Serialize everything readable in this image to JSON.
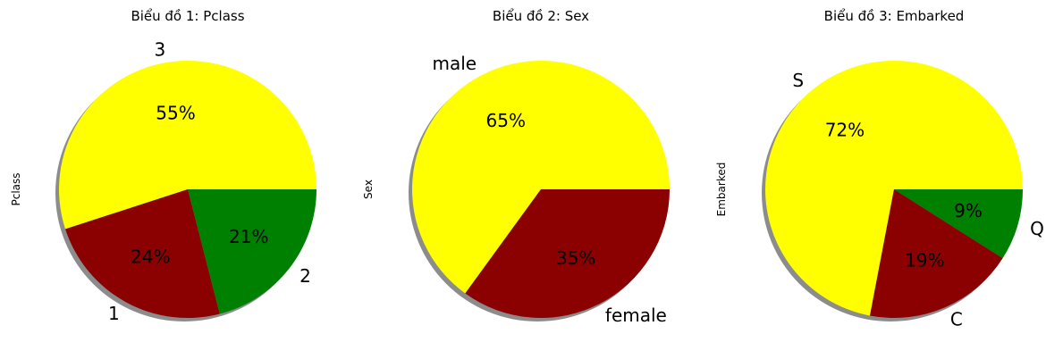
{
  "chart_data": [
    {
      "type": "pie",
      "title": "Biểu đồ 1: Pclass",
      "ylabel": "Pclass",
      "categories": [
        "3",
        "1",
        "2"
      ],
      "values": [
        55,
        24,
        21
      ],
      "pct_labels": [
        "55%",
        "24%",
        "21%"
      ],
      "colors": [
        "#ffff00",
        "#8b0000",
        "#008000"
      ],
      "shadow": true
    },
    {
      "type": "pie",
      "title": "Biểu đồ 2: Sex",
      "ylabel": "Sex",
      "categories": [
        "male",
        "female"
      ],
      "values": [
        65,
        35
      ],
      "pct_labels": [
        "65%",
        "35%"
      ],
      "colors": [
        "#ffff00",
        "#8b0000"
      ],
      "shadow": true
    },
    {
      "type": "pie",
      "title": "Biểu đồ 3: Embarked",
      "ylabel": "Embarked",
      "categories": [
        "S",
        "C",
        "Q"
      ],
      "values": [
        72,
        19,
        9
      ],
      "pct_labels": [
        "72%",
        "19%",
        "9%"
      ],
      "colors": [
        "#ffff00",
        "#8b0000",
        "#008000"
      ],
      "shadow": true
    }
  ]
}
